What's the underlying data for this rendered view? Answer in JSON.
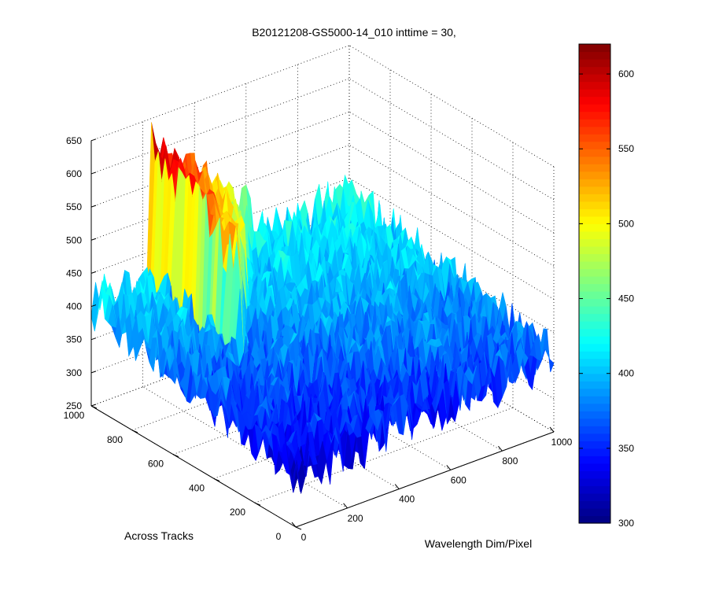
{
  "chart_data": {
    "type": "surface3d",
    "title": "B20121208-GS5000-14_010 inttime = 30,",
    "xlabel": "Wavelength Dim/Pixel",
    "ylabel": "Across Tracks",
    "zlabel": "",
    "xlim": [
      0,
      1000
    ],
    "ylim": [
      0,
      1000
    ],
    "zlim": [
      250,
      650
    ],
    "x_ticks": [
      "0",
      "200",
      "400",
      "600",
      "800",
      "1000"
    ],
    "y_ticks": [
      "0",
      "200",
      "400",
      "600",
      "800",
      "1000"
    ],
    "z_ticks": [
      "250",
      "300",
      "350",
      "400",
      "450",
      "500",
      "550",
      "600",
      "650"
    ],
    "grid": true,
    "colormap": "jet",
    "colorbar": {
      "range": [
        300,
        620
      ],
      "ticks": [
        "300",
        "350",
        "400",
        "450",
        "500",
        "550",
        "600"
      ]
    },
    "surface": {
      "baseline_corner_values": {
        "x0_y0": 330,
        "x1000_y0": 365,
        "x0_y1000": 405,
        "x1000_y1000": 420
      },
      "noise_amplitude": 40,
      "peak_region": {
        "shape": "triangle",
        "vertices": [
          [
            230,
            560
          ],
          [
            230,
            1000
          ],
          [
            620,
            1000
          ]
        ],
        "peak_value": 610,
        "peak_vertex": [
          230,
          1000
        ],
        "edge_value": 450
      }
    }
  }
}
